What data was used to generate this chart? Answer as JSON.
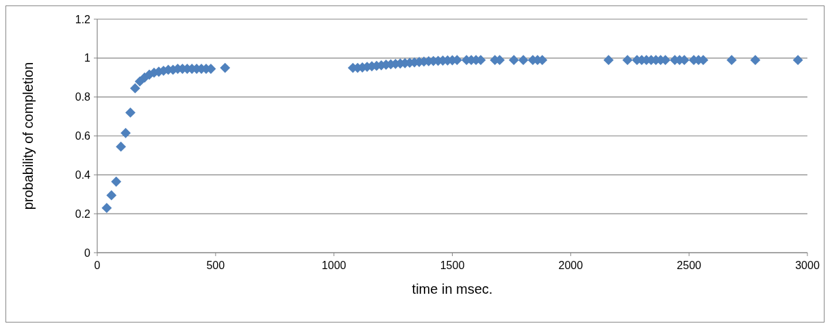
{
  "chart_data": {
    "type": "scatter",
    "xlabel": "time in msec.",
    "ylabel": "probability of completion",
    "xlim": [
      0,
      3000
    ],
    "xticks": [
      0,
      500,
      1000,
      1500,
      2000,
      2500,
      3000
    ],
    "ylim": [
      0,
      1.2
    ],
    "yticks": [
      0,
      0.2,
      0.4,
      0.6,
      0.8,
      1,
      1.2
    ],
    "grid": "y",
    "marker": "diamond",
    "series": [
      {
        "color": "#4f81bd",
        "x": [
          40,
          60,
          80,
          100,
          120,
          140,
          160,
          180,
          200,
          220,
          240,
          260,
          280,
          300,
          320,
          340,
          360,
          380,
          400,
          420,
          440,
          460,
          480,
          540,
          1080,
          1100,
          1120,
          1140,
          1160,
          1180,
          1200,
          1220,
          1240,
          1260,
          1280,
          1300,
          1320,
          1340,
          1360,
          1380,
          1400,
          1420,
          1440,
          1460,
          1480,
          1500,
          1520,
          1560,
          1580,
          1600,
          1620,
          1680,
          1700,
          1760,
          1800,
          1840,
          1860,
          1880,
          2160,
          2240,
          2280,
          2300,
          2320,
          2340,
          2360,
          2380,
          2400,
          2440,
          2460,
          2480,
          2520,
          2540,
          2560,
          2680,
          2780,
          2960
        ],
        "values": [
          0.23,
          0.295,
          0.365,
          0.545,
          0.615,
          0.72,
          0.845,
          0.88,
          0.9,
          0.915,
          0.925,
          0.93,
          0.935,
          0.94,
          0.94,
          0.945,
          0.945,
          0.945,
          0.945,
          0.945,
          0.945,
          0.945,
          0.945,
          0.95,
          0.95,
          0.95,
          0.952,
          0.955,
          0.958,
          0.96,
          0.963,
          0.966,
          0.968,
          0.97,
          0.972,
          0.974,
          0.976,
          0.978,
          0.98,
          0.982,
          0.984,
          0.985,
          0.986,
          0.987,
          0.988,
          0.989,
          0.99,
          0.99,
          0.99,
          0.99,
          0.99,
          0.99,
          0.99,
          0.99,
          0.99,
          0.99,
          0.99,
          0.99,
          0.99,
          0.99,
          0.99,
          0.99,
          0.99,
          0.99,
          0.99,
          0.99,
          0.99,
          0.99,
          0.99,
          0.99,
          0.99,
          0.99,
          0.99,
          0.99,
          0.99,
          0.99
        ]
      }
    ]
  }
}
